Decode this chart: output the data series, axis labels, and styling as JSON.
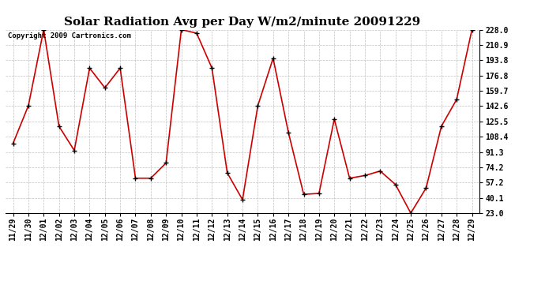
{
  "title": "Solar Radiation Avg per Day W/m2/minute 20091229",
  "copyright": "Copyright 2009 Cartronics.com",
  "labels": [
    "11/29",
    "11/30",
    "12/01",
    "12/02",
    "12/03",
    "12/04",
    "12/05",
    "12/06",
    "12/07",
    "12/08",
    "12/09",
    "12/10",
    "12/11",
    "12/12",
    "12/13",
    "12/14",
    "12/15",
    "12/16",
    "12/17",
    "12/18",
    "12/19",
    "12/20",
    "12/21",
    "12/22",
    "12/23",
    "12/24",
    "12/25",
    "12/26",
    "12/27",
    "12/28",
    "12/29"
  ],
  "values": [
    101,
    143,
    228,
    120,
    93,
    185,
    163,
    185,
    62,
    62,
    79,
    228,
    224,
    185,
    68,
    38,
    143,
    196,
    113,
    44,
    45,
    128,
    62,
    65,
    70,
    55,
    23,
    51,
    120,
    150,
    228
  ],
  "line_color": "#cc0000",
  "marker_color": "#000000",
  "bg_color": "#ffffff",
  "grid_color": "#c0c0c0",
  "yticks": [
    23.0,
    40.1,
    57.2,
    74.2,
    91.3,
    108.4,
    125.5,
    142.6,
    159.7,
    176.8,
    193.8,
    210.9,
    228.0
  ],
  "ymin": 23.0,
  "ymax": 228.0,
  "title_fontsize": 11,
  "label_fontsize": 7,
  "copyright_fontsize": 6.5
}
